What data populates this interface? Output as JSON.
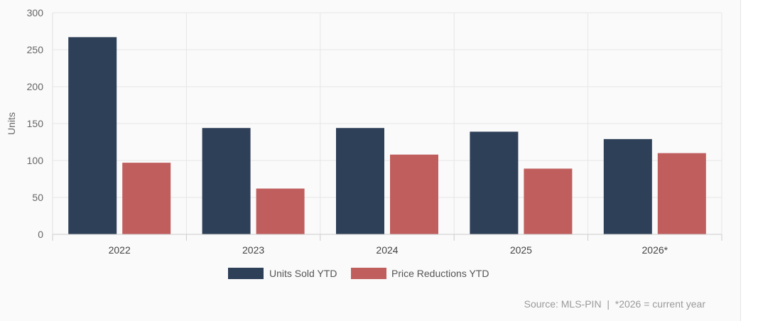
{
  "chart_data": {
    "type": "bar",
    "categories": [
      "2022",
      "2023",
      "2024",
      "2025",
      "2026*"
    ],
    "series": [
      {
        "name": "Units Sold YTD",
        "values": [
          267,
          144,
          144,
          139,
          129
        ],
        "color": "#2e3f58"
      },
      {
        "name": "Price Reductions YTD",
        "values": [
          97,
          62,
          108,
          89,
          110
        ],
        "color": "#c05e5e"
      }
    ],
    "ylabel": "Units",
    "xlabel": "",
    "ylim": [
      0,
      300
    ],
    "yticks": [
      0,
      50,
      100,
      150,
      200,
      250,
      300
    ],
    "grid": true,
    "legend": "bottom"
  },
  "footer": {
    "source": "Source: MLS-PIN  |  *2026 = current year"
  }
}
